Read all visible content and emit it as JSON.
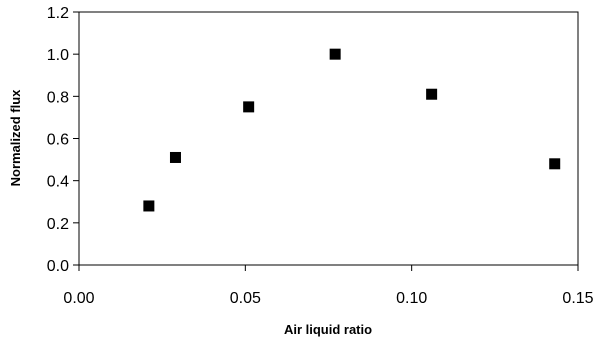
{
  "chart_data": {
    "type": "scatter",
    "title": "",
    "xlabel": "Air liquid ratio",
    "ylabel": "Normalized flux",
    "xlim": [
      0.0,
      0.15
    ],
    "ylim": [
      0.0,
      1.2
    ],
    "xticks": [
      0.0,
      0.05,
      0.1,
      0.15
    ],
    "yticks": [
      0.0,
      0.2,
      0.4,
      0.6,
      0.8,
      1.0,
      1.2
    ],
    "xtick_labels": [
      "0.00",
      "0.05",
      "0.10",
      "0.15"
    ],
    "ytick_labels": [
      "0.0",
      "0.2",
      "0.4",
      "0.6",
      "0.8",
      "1.0",
      "1.2"
    ],
    "grid": false,
    "legend": "none",
    "marker": "square",
    "marker_color": "#000000",
    "series": [
      {
        "x": [
          0.021,
          0.029,
          0.051,
          0.077,
          0.106,
          0.143
        ],
        "y": [
          0.28,
          0.51,
          0.75,
          1.0,
          0.81,
          0.48
        ]
      }
    ]
  }
}
